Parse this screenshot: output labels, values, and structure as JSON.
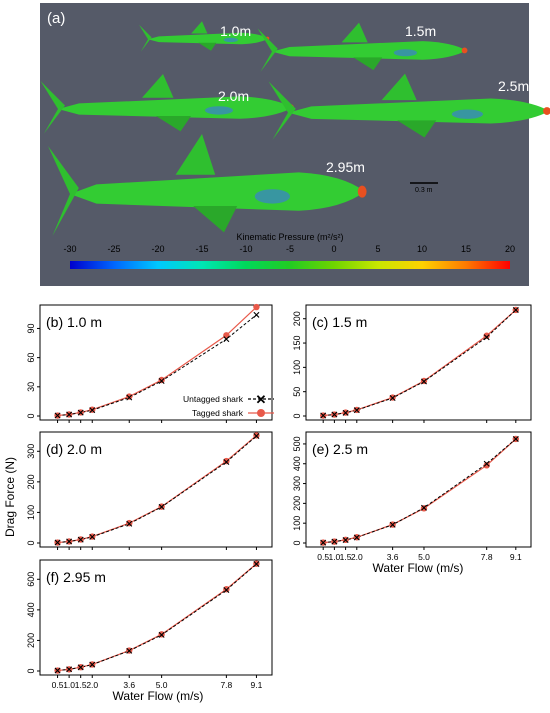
{
  "panel_a": {
    "label": "(a)",
    "background": "#555a68",
    "shark_labels": [
      "1.0m",
      "1.5m",
      "2.0m",
      "2.5m",
      "2.95m"
    ],
    "scale_bar_label": "0.3 m",
    "colorbar": {
      "title": "Kinematic Pressure (m²/s²)",
      "ticks": [
        "-30",
        "-25",
        "-20",
        "-15",
        "-10",
        "-5",
        "0",
        "5",
        "10",
        "15",
        "20"
      ],
      "colors": [
        "#0000cc",
        "#0066ff",
        "#00c8ff",
        "#00e6b4",
        "#00d85a",
        "#22cc22",
        "#6fd400",
        "#c8e600",
        "#ffd200",
        "#ff7a00",
        "#ff0000"
      ]
    }
  },
  "y_label": "Drag Force (N)",
  "x_label": "Water Flow (m/s)",
  "legend": {
    "untagged": "Untagged shark",
    "tagged": "Tagged shark"
  },
  "colors": {
    "tagged": "#e8594a",
    "untagged": "#000000"
  },
  "chart_data": [
    {
      "type": "line",
      "title": "(b)  1.0 m",
      "x": [
        0.5,
        1.0,
        1.5,
        2.0,
        3.6,
        5.0,
        7.8,
        9.1
      ],
      "x_tick_labels": [
        "0.5",
        "1.0",
        "1.5",
        "2.0",
        "3.6",
        "5.0",
        "7.8",
        "9.1"
      ],
      "ylim": [
        0,
        110
      ],
      "y_ticks": [
        "0",
        "30",
        "60",
        "90"
      ],
      "series": [
        {
          "name": "Untagged shark",
          "values": [
            0.5,
            1.5,
            3.5,
            6,
            19,
            36,
            79,
            104
          ]
        },
        {
          "name": "Tagged shark",
          "values": [
            0.5,
            1.6,
            3.7,
            6.5,
            20,
            37,
            83,
            112
          ]
        }
      ]
    },
    {
      "type": "line",
      "title": "(c)  1.5 m",
      "x": [
        0.5,
        1.0,
        1.5,
        2.0,
        3.6,
        5.0,
        7.8,
        9.1
      ],
      "x_tick_labels": [
        "0.5",
        "1.0",
        "1.5",
        "2.0",
        "3.6",
        "5.0",
        "7.8",
        "9.1"
      ],
      "ylim": [
        0,
        220
      ],
      "y_ticks": [
        "0",
        "50",
        "100",
        "150",
        "200"
      ],
      "series": [
        {
          "name": "Untagged shark",
          "values": [
            1,
            3,
            6.5,
            12,
            37,
            71,
            162,
            218
          ]
        },
        {
          "name": "Tagged shark",
          "values": [
            1,
            3,
            7,
            12.5,
            38,
            72,
            165,
            218
          ]
        }
      ]
    },
    {
      "type": "line",
      "title": "(d)  2.0 m",
      "x": [
        0.5,
        1.0,
        1.5,
        2.0,
        3.6,
        5.0,
        7.8,
        9.1
      ],
      "x_tick_labels": [
        "0.5",
        "1.0",
        "1.5",
        "2.0",
        "3.6",
        "5.0",
        "7.8",
        "9.1"
      ],
      "ylim": [
        0,
        350
      ],
      "y_ticks": [
        "0",
        "100",
        "200",
        "300"
      ],
      "series": [
        {
          "name": "Untagged shark",
          "values": [
            1.5,
            5,
            11,
            20,
            63,
            118,
            265,
            350
          ]
        },
        {
          "name": "Tagged shark",
          "values": [
            1.5,
            5,
            11.5,
            21,
            65,
            119,
            268,
            352
          ]
        }
      ]
    },
    {
      "type": "line",
      "title": "(e)  2.5 m",
      "x": [
        0.5,
        1.0,
        1.5,
        2.0,
        3.6,
        5.0,
        7.8,
        9.1
      ],
      "x_tick_labels": [
        "0.5",
        "1.0",
        "1.5",
        "2.0",
        "3.6",
        "5.0",
        "7.8",
        "9.1"
      ],
      "ylim": [
        0,
        540
      ],
      "y_ticks": [
        "0",
        "100",
        "200",
        "300",
        "400",
        "500"
      ],
      "series": [
        {
          "name": "Untagged shark",
          "values": [
            2,
            7,
            15,
            28,
            92,
            178,
            400,
            525
          ]
        },
        {
          "name": "Tagged shark",
          "values": [
            2,
            7,
            16,
            29,
            93,
            175,
            392,
            525
          ]
        }
      ]
    },
    {
      "type": "line",
      "title": "(f)  2.95 m",
      "x": [
        0.5,
        1.0,
        1.5,
        2.0,
        3.6,
        5.0,
        7.8,
        9.1
      ],
      "x_tick_labels": [
        "0.5",
        "1.0",
        "1.5",
        "2.0",
        "3.6",
        "5.0",
        "7.8",
        "9.1"
      ],
      "ylim": [
        0,
        700
      ],
      "y_ticks": [
        "0",
        "200",
        "400",
        "600"
      ],
      "series": [
        {
          "name": "Untagged shark",
          "values": [
            3,
            11,
            24,
            42,
            132,
            236,
            530,
            700
          ]
        },
        {
          "name": "Tagged shark",
          "values": [
            3,
            11,
            25,
            43,
            134,
            240,
            535,
            702
          ]
        }
      ]
    }
  ]
}
